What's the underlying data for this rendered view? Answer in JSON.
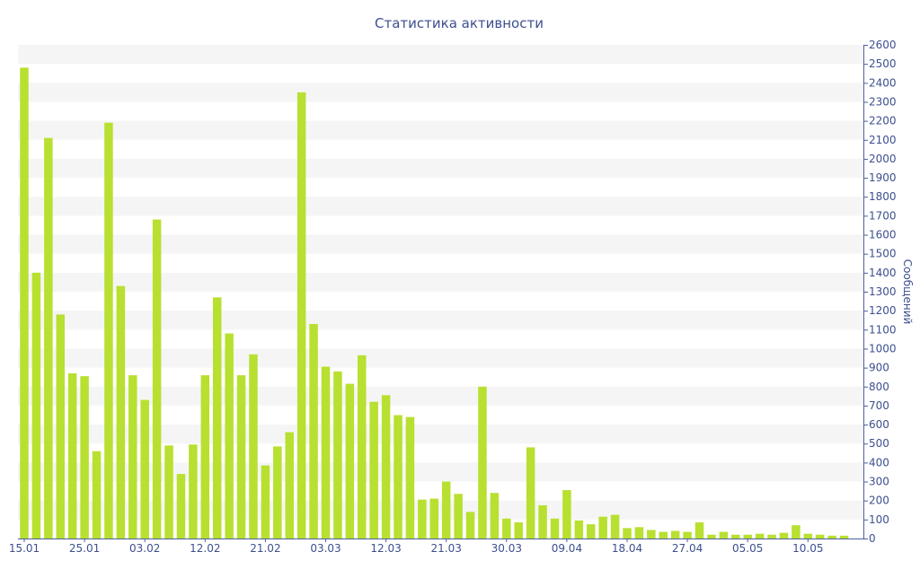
{
  "colors": {
    "bar": "#b8e030",
    "text": "#3d4f8f",
    "axis": "#4e5f9c",
    "stripe": "#f5f5f5"
  },
  "chart_data": {
    "type": "bar",
    "title": "Статистика активности",
    "xlabel": "",
    "ylabel": "Сообщений",
    "grid": "horizontal stripes",
    "y_axis_position": "right",
    "ylim": [
      0,
      2600
    ],
    "y_ticks": [
      0,
      100,
      200,
      300,
      400,
      500,
      600,
      700,
      800,
      900,
      1000,
      1100,
      1200,
      1300,
      1400,
      1500,
      1600,
      1700,
      1800,
      1900,
      2000,
      2100,
      2200,
      2300,
      2400,
      2500,
      2600
    ],
    "x_tick_labels": [
      {
        "label": "15.01",
        "index": 0
      },
      {
        "label": "25.01",
        "index": 5
      },
      {
        "label": "03.02",
        "index": 10
      },
      {
        "label": "12.02",
        "index": 15
      },
      {
        "label": "21.02",
        "index": 20
      },
      {
        "label": "03.03",
        "index": 25
      },
      {
        "label": "12.03",
        "index": 30
      },
      {
        "label": "21.03",
        "index": 35
      },
      {
        "label": "30.03",
        "index": 40
      },
      {
        "label": "09.04",
        "index": 45
      },
      {
        "label": "18.04",
        "index": 50
      },
      {
        "label": "27.04",
        "index": 55
      },
      {
        "label": "05.05",
        "index": 60
      },
      {
        "label": "10.05",
        "index": 65
      }
    ],
    "values": [
      2480,
      1400,
      2110,
      1180,
      870,
      855,
      460,
      2190,
      1330,
      860,
      730,
      1680,
      490,
      340,
      495,
      860,
      1270,
      1080,
      860,
      970,
      385,
      485,
      560,
      2350,
      1130,
      905,
      880,
      815,
      965,
      720,
      755,
      650,
      640,
      205,
      210,
      300,
      235,
      140,
      800,
      240,
      105,
      85,
      480,
      175,
      105,
      255,
      95,
      75,
      115,
      125,
      55,
      60,
      45,
      35,
      40,
      35,
      85,
      20,
      35,
      20,
      20,
      25,
      20,
      30,
      70,
      25,
      20,
      15,
      15
    ]
  }
}
